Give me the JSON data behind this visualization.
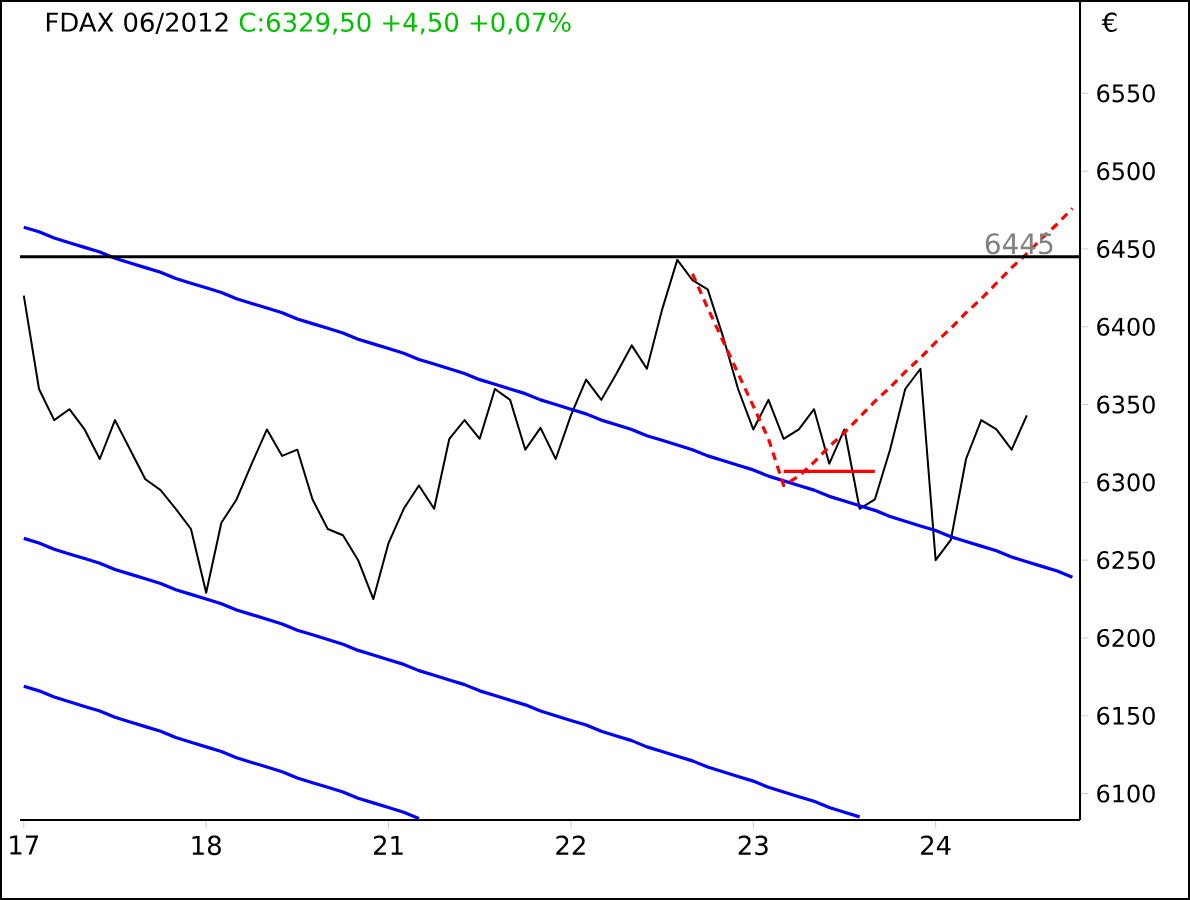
{
  "chart_data": {
    "type": "line",
    "title": "FDAX 06/2012",
    "subtitle": "C:6329,50 +4,50 +0,07%",
    "ylabel": "€",
    "categories": [
      "17",
      null,
      null,
      null,
      null,
      null,
      null,
      null,
      null,
      null,
      null,
      null,
      "18",
      null,
      null,
      null,
      null,
      null,
      null,
      null,
      null,
      null,
      null,
      null,
      "21",
      null,
      null,
      null,
      null,
      null,
      null,
      null,
      null,
      null,
      null,
      null,
      "22",
      null,
      null,
      null,
      null,
      null,
      null,
      null,
      null,
      null,
      null,
      null,
      "23",
      null,
      null,
      null,
      null,
      null,
      null,
      null,
      null,
      null,
      null,
      null,
      "24",
      null,
      null,
      null,
      null,
      null,
      null,
      null,
      null,
      null
    ],
    "ylim": [
      6083,
      6610
    ],
    "yticks": [
      6100,
      6150,
      6200,
      6250,
      6300,
      6350,
      6400,
      6450,
      6500,
      6550
    ],
    "grid": false,
    "legend": false,
    "marker": "none",
    "ref_lines": [
      {
        "axis": "y",
        "value": 6445,
        "label": "6445",
        "color": "#000000"
      }
    ],
    "series": [
      {
        "color": "#000000",
        "line_style": "solid",
        "values": [
          6420,
          6360,
          6340,
          6347,
          6334,
          6315,
          6340,
          6321,
          6302,
          6295,
          6283,
          6270,
          6229,
          6274,
          6289,
          6312,
          6334,
          6317,
          6321,
          6289,
          6270,
          6266,
          6250,
          6225,
          6261,
          6283,
          6298,
          6283,
          6328,
          6340,
          6328,
          6360,
          6353,
          6321,
          6335,
          6315,
          6343,
          6366,
          6353,
          6370,
          6388,
          6373,
          6411,
          6443,
          6430,
          6424,
          6394,
          6360,
          6334,
          6353,
          6328,
          6334,
          6347,
          6312,
          6334,
          6283,
          6289,
          6321,
          6360,
          6373,
          6250,
          6263,
          6315,
          6340,
          6334,
          6321,
          6343,
          null,
          null,
          null
        ]
      },
      {
        "color": "#0000ff",
        "line_style": "solid",
        "values": [
          6464,
          6461,
          6457,
          6454,
          6451,
          6448,
          6444,
          6441,
          6438,
          6435,
          6431,
          6428,
          6425,
          6422,
          6418,
          6415,
          6412,
          6409,
          6405,
          6402,
          6399,
          6396,
          6392,
          6389,
          6386,
          6383,
          6379,
          6376,
          6373,
          6370,
          6366,
          6363,
          6360,
          6357,
          6353,
          6350,
          6347,
          6344,
          6340,
          6337,
          6334,
          6330,
          6327,
          6324,
          6321,
          6317,
          6314,
          6311,
          6308,
          6304,
          6301,
          6298,
          6295,
          6291,
          6288,
          6285,
          6282,
          6278,
          6275,
          6272,
          6269,
          6265,
          6262,
          6259,
          6256,
          6252,
          6249,
          6246,
          6243,
          6239
        ]
      },
      {
        "color": "#0000ff",
        "line_style": "solid",
        "values": [
          6264,
          6261,
          6257,
          6254,
          6251,
          6248,
          6244,
          6241,
          6238,
          6235,
          6231,
          6228,
          6225,
          6222,
          6218,
          6215,
          6212,
          6209,
          6205,
          6202,
          6199,
          6196,
          6192,
          6189,
          6186,
          6183,
          6179,
          6176,
          6173,
          6170,
          6166,
          6163,
          6160,
          6157,
          6153,
          6150,
          6147,
          6144,
          6140,
          6137,
          6134,
          6130,
          6127,
          6124,
          6121,
          6117,
          6114,
          6111,
          6108,
          6104,
          6101,
          6098,
          6095,
          6091,
          6088,
          6085,
          null,
          null,
          null,
          null,
          null,
          null,
          null,
          null,
          null,
          null,
          null,
          null,
          null,
          null
        ]
      },
      {
        "color": "#0000ff",
        "line_style": "solid",
        "values": [
          6169,
          6166,
          6162,
          6159,
          6156,
          6153,
          6149,
          6146,
          6143,
          6140,
          6136,
          6133,
          6130,
          6127,
          6123,
          6120,
          6117,
          6114,
          6110,
          6107,
          6104,
          6101,
          6097,
          6094,
          6091,
          6088,
          6084,
          null,
          null,
          null,
          null,
          null,
          null,
          null,
          null,
          null,
          null,
          null,
          null,
          null,
          null,
          null,
          null,
          null,
          null,
          null,
          null,
          null,
          null,
          null,
          null,
          null,
          null,
          null,
          null,
          null,
          null,
          null,
          null,
          null,
          null,
          null,
          null,
          null,
          null,
          null,
          null,
          null,
          null,
          null
        ]
      },
      {
        "color": "#ff0000",
        "line_style": "dashed",
        "values": [
          null,
          null,
          null,
          null,
          null,
          null,
          null,
          null,
          null,
          null,
          null,
          null,
          null,
          null,
          null,
          null,
          null,
          null,
          null,
          null,
          null,
          null,
          null,
          null,
          null,
          null,
          null,
          null,
          null,
          null,
          null,
          null,
          null,
          null,
          null,
          null,
          null,
          null,
          null,
          null,
          null,
          null,
          null,
          null,
          6434,
          6412,
          6391,
          6370,
          6349,
          6328,
          6298,
          6304,
          6313,
          6323,
          6332,
          6342,
          6352,
          6361,
          6371,
          6380,
          6390,
          6399,
          6409,
          6418,
          6428,
          6438,
          6447,
          6457,
          6466,
          6476
        ]
      },
      {
        "color": "#ff0000",
        "line_style": "solid",
        "values": [
          null,
          null,
          null,
          null,
          null,
          null,
          null,
          null,
          null,
          null,
          null,
          null,
          null,
          null,
          null,
          null,
          null,
          null,
          null,
          null,
          null,
          null,
          null,
          null,
          null,
          null,
          null,
          null,
          null,
          null,
          null,
          null,
          null,
          null,
          null,
          null,
          null,
          null,
          null,
          null,
          null,
          null,
          null,
          null,
          null,
          null,
          null,
          null,
          null,
          null,
          6307,
          6307,
          6307,
          6307,
          6307,
          6307,
          6307,
          null,
          null,
          null,
          null,
          null,
          null,
          null,
          null,
          null,
          null,
          null,
          null,
          null
        ]
      }
    ]
  }
}
